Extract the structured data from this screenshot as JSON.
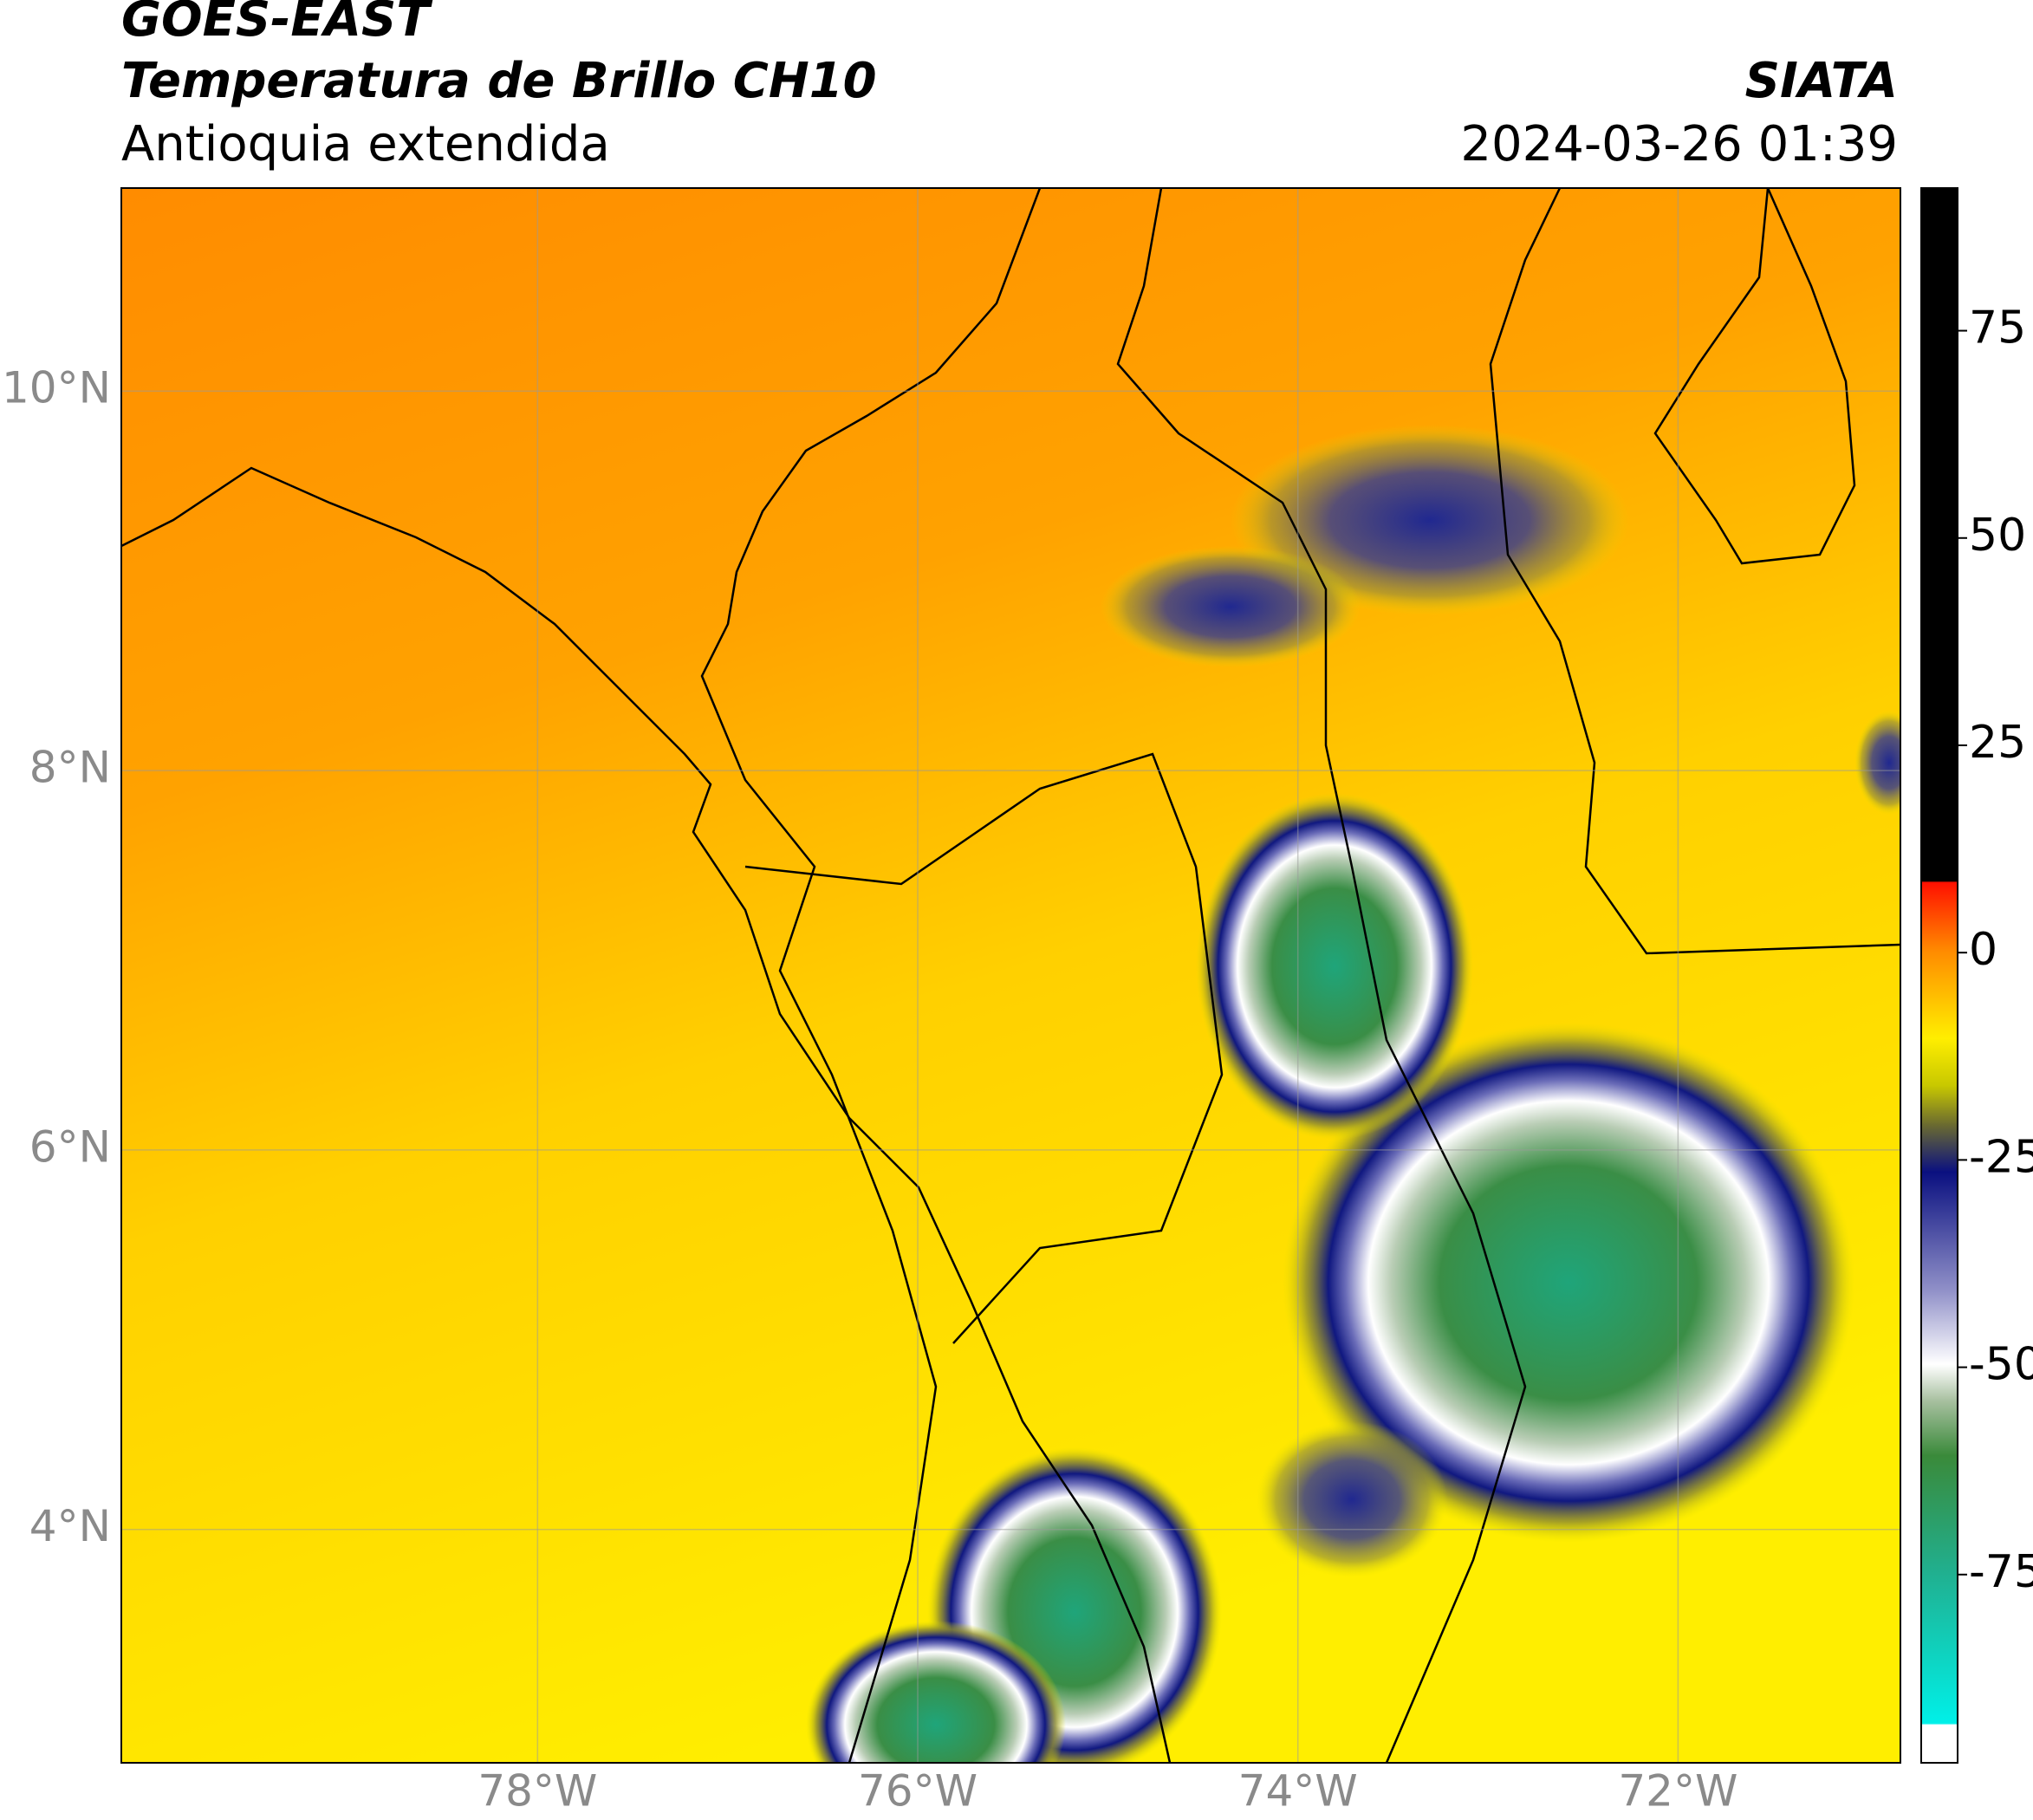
{
  "chart_data": {
    "type": "map",
    "title": "GOES-EAST",
    "subtitle": "Temperatura de Brillo CH10",
    "region": "Antioquia extendida",
    "source": "SIATA",
    "timestamp": "2024-03-26 01:39",
    "xlim": [
      -80.19,
      -70.83
    ],
    "ylim": [
      2.77,
      11.07
    ],
    "xticks": [
      {
        "value": -78,
        "label": "78°W"
      },
      {
        "value": -76,
        "label": "76°W"
      },
      {
        "value": -74,
        "label": "74°W"
      },
      {
        "value": -72,
        "label": "72°W"
      }
    ],
    "yticks": [
      {
        "value": 4,
        "label": "4°N"
      },
      {
        "value": 6,
        "label": "6°N"
      },
      {
        "value": 8,
        "label": "8°N"
      },
      {
        "value": 10,
        "label": "10°N"
      }
    ],
    "grid": true,
    "colorbar": {
      "lim": [
        -97.7,
        92.2
      ],
      "ticks": [
        75,
        50,
        25,
        0,
        -25,
        -50,
        -75
      ]
    }
  }
}
